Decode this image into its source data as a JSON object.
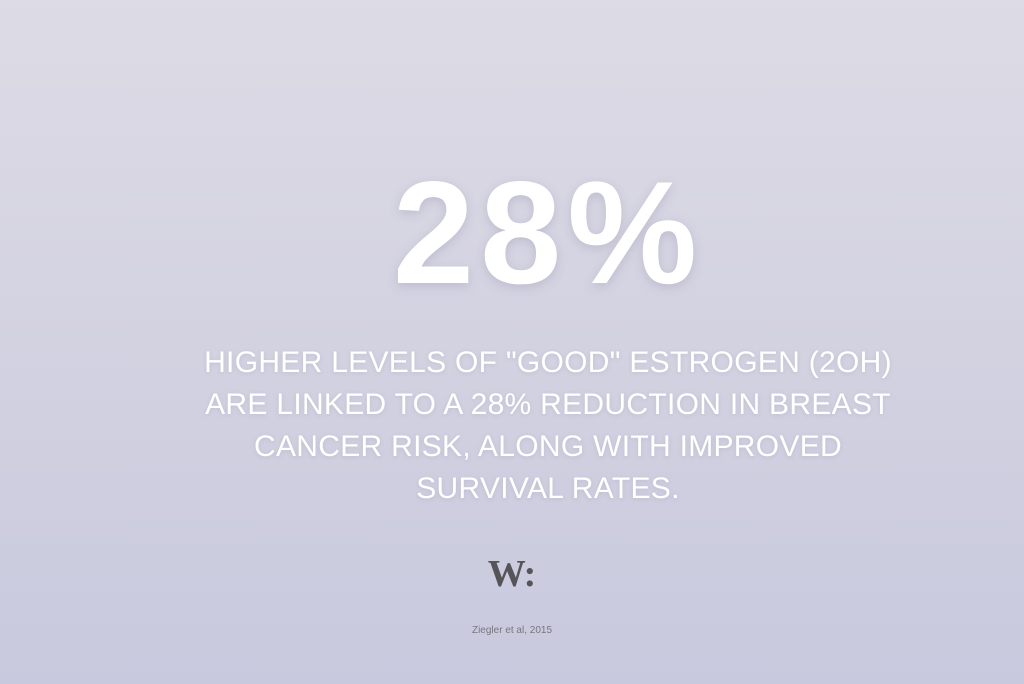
{
  "stat": "28%",
  "statement": {
    "lines": [
      "HIGHER LEVELS OF \"GOOD\" ESTROGEN (2OH)",
      "ARE LINKED TO A 28% REDUCTION IN BREAST",
      "CANCER RISK, ALONG WITH IMPROVED",
      "SURVIVAL RATES."
    ]
  },
  "logo": "W:",
  "citation": "Ziegler et al, 2015"
}
